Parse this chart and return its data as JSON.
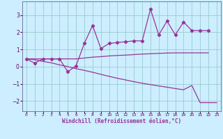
{
  "xlabel": "Windchill (Refroidissement éolien,°C)",
  "background_color": "#cceeff",
  "grid_color": "#99cccc",
  "line_color": "#993399",
  "ylim": [
    -2.6,
    3.8
  ],
  "xlim": [
    -0.5,
    23.5
  ],
  "yticks": [
    -2,
    -1,
    0,
    1,
    2,
    3
  ],
  "xticks": [
    0,
    1,
    2,
    3,
    4,
    5,
    6,
    7,
    8,
    9,
    10,
    11,
    12,
    13,
    14,
    15,
    16,
    17,
    18,
    19,
    20,
    21,
    22,
    23
  ],
  "line1_x": [
    0,
    1,
    2,
    3,
    4,
    5,
    6,
    7,
    8,
    9,
    10,
    11,
    12,
    13,
    14,
    15,
    16,
    17,
    18,
    19,
    20,
    21,
    22
  ],
  "line1_y": [
    0.45,
    0.2,
    0.45,
    0.45,
    0.45,
    -0.3,
    0.05,
    1.35,
    2.4,
    1.05,
    1.35,
    1.4,
    1.45,
    1.5,
    1.5,
    3.35,
    1.85,
    2.65,
    1.85,
    2.6,
    2.1,
    2.1,
    2.1
  ],
  "line2_x": [
    0,
    1,
    2,
    3,
    4,
    5,
    6,
    7,
    8,
    9,
    10,
    11,
    12,
    13,
    14,
    15,
    16,
    17,
    18,
    19,
    20,
    21,
    22
  ],
  "line2_y": [
    0.45,
    0.45,
    0.45,
    0.45,
    0.45,
    0.45,
    0.45,
    0.5,
    0.55,
    0.58,
    0.62,
    0.65,
    0.67,
    0.7,
    0.73,
    0.75,
    0.77,
    0.79,
    0.8,
    0.8,
    0.8,
    0.8,
    0.8
  ],
  "line3_x": [
    0,
    1,
    2,
    3,
    4,
    5,
    6,
    7,
    8,
    9,
    10,
    11,
    12,
    13,
    14,
    15,
    16,
    17,
    18,
    19,
    20,
    21,
    22,
    23
  ],
  "line3_y": [
    0.45,
    0.4,
    0.3,
    0.22,
    0.1,
    0.0,
    -0.12,
    -0.22,
    -0.33,
    -0.45,
    -0.57,
    -0.68,
    -0.78,
    -0.88,
    -0.97,
    -1.05,
    -1.13,
    -1.2,
    -1.28,
    -1.35,
    -1.1,
    -2.1,
    -2.1,
    -2.1
  ]
}
